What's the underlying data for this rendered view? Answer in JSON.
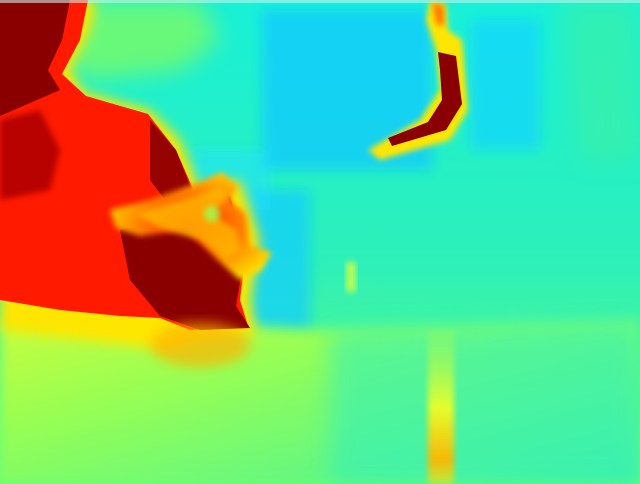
{
  "image": {
    "kind": "depth-map heat visualization",
    "palette": {
      "far": "#00e5ff",
      "mid_far": "#20f0d0",
      "mid": "#7cff6a",
      "mid_near": "#d8ff30",
      "near": "#ffe600",
      "closer": "#ff7a00",
      "very_near": "#ff1a00",
      "closest": "#8a0000"
    },
    "regions": [
      "person-silhouette",
      "raised-hand",
      "boomerang-object",
      "background-wall",
      "window-panel",
      "floor-gradient",
      "vertical-bright-stripe"
    ]
  }
}
